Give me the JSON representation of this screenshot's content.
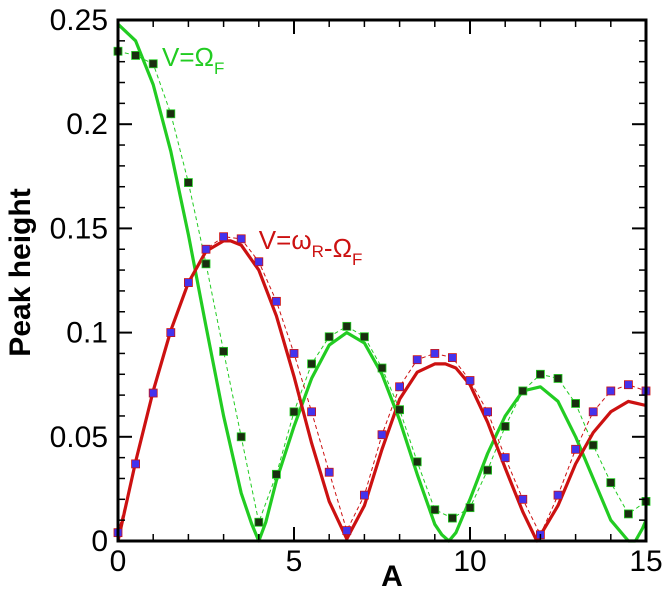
{
  "chart_data": {
    "type": "line",
    "title": "",
    "xlabel": "A",
    "ylabel": "Peak height",
    "xlim": [
      0,
      15
    ],
    "ylim": [
      0,
      0.25
    ],
    "xticks": [
      {
        "value": 0,
        "label": "0"
      },
      {
        "value": 5,
        "label": "5"
      },
      {
        "value": 10,
        "label": "10"
      },
      {
        "value": 15,
        "label": "15"
      }
    ],
    "yticks": [
      {
        "value": 0,
        "label": "0"
      },
      {
        "value": 0.05,
        "label": "0.05"
      },
      {
        "value": 0.1,
        "label": "0.1"
      },
      {
        "value": 0.15,
        "label": "0.15"
      },
      {
        "value": 0.2,
        "label": "0.2"
      },
      {
        "value": 0.25,
        "label": "0.25"
      }
    ],
    "grid": false,
    "colors": {
      "green": "#22cc22",
      "red": "#cc1111",
      "green_marker": "#1a2e10",
      "red_marker": "#4433ee"
    },
    "series": [
      {
        "key": "green_curve",
        "style": "solid-line",
        "color": "#22cc22",
        "x": [
          0,
          0.5,
          1,
          1.5,
          2,
          2.5,
          3,
          3.5,
          3.8,
          4,
          4.2,
          4.5,
          5,
          5.5,
          6,
          6.5,
          7,
          7.5,
          8,
          8.5,
          9,
          9.2,
          9.4,
          9.6,
          10,
          10.5,
          11,
          11.5,
          12,
          12.5,
          13,
          13.5,
          14,
          14.5,
          14.7,
          14.9,
          15
        ],
        "y": [
          0.248,
          0.24,
          0.219,
          0.187,
          0.147,
          0.103,
          0.06,
          0.023,
          0.008,
          0.0,
          0.009,
          0.029,
          0.055,
          0.078,
          0.094,
          0.1,
          0.095,
          0.08,
          0.058,
          0.032,
          0.008,
          0.003,
          0.0,
          0.004,
          0.02,
          0.042,
          0.06,
          0.072,
          0.074,
          0.067,
          0.05,
          0.03,
          0.01,
          0.0,
          0.0,
          0.006,
          0.01
        ]
      },
      {
        "key": "red_curve",
        "style": "solid-line",
        "color": "#cc1111",
        "x": [
          0,
          0.5,
          1,
          1.5,
          2,
          2.5,
          3,
          3.2,
          3.5,
          4,
          4.5,
          5,
          5.5,
          6,
          6.5,
          7,
          7.5,
          8,
          8.5,
          9,
          9.3,
          9.6,
          10,
          10.5,
          11,
          11.5,
          11.9,
          12.5,
          13,
          13.5,
          14,
          14.5,
          15
        ],
        "y": [
          0.0,
          0.038,
          0.072,
          0.101,
          0.124,
          0.139,
          0.144,
          0.144,
          0.142,
          0.13,
          0.108,
          0.079,
          0.047,
          0.019,
          0.001,
          0.017,
          0.044,
          0.068,
          0.081,
          0.085,
          0.085,
          0.083,
          0.075,
          0.057,
          0.035,
          0.014,
          0.0,
          0.017,
          0.037,
          0.052,
          0.062,
          0.067,
          0.065
        ]
      },
      {
        "key": "green_markers",
        "style": "markers-dashed",
        "color": "#22cc22",
        "marker_color": "#1a2e10",
        "x": [
          0,
          0.5,
          1,
          1.5,
          2,
          2.5,
          3,
          3.5,
          4,
          4.5,
          5,
          5.5,
          6,
          6.5,
          7,
          7.5,
          8,
          8.5,
          9,
          9.5,
          10,
          10.5,
          11,
          11.5,
          12,
          12.5,
          13,
          13.5,
          14,
          14.5,
          15
        ],
        "y": [
          0.235,
          0.233,
          0.229,
          0.205,
          0.172,
          0.133,
          0.091,
          0.05,
          0.009,
          0.032,
          0.062,
          0.085,
          0.098,
          0.103,
          0.098,
          0.083,
          0.063,
          0.038,
          0.015,
          0.011,
          0.016,
          0.034,
          0.055,
          0.072,
          0.08,
          0.078,
          0.066,
          0.046,
          0.028,
          0.013,
          0.019
        ]
      },
      {
        "key": "red_markers",
        "style": "markers-dashed",
        "color": "#cc1111",
        "marker_color": "#4433ee",
        "x": [
          0,
          0.5,
          1,
          1.5,
          2,
          2.5,
          3,
          3.5,
          4,
          4.5,
          5,
          5.5,
          6,
          6.5,
          7,
          7.5,
          8,
          8.5,
          9,
          9.5,
          10,
          10.5,
          11,
          11.5,
          12,
          12.5,
          13,
          13.5,
          14,
          14.5,
          15
        ],
        "y": [
          0.004,
          0.037,
          0.071,
          0.1,
          0.124,
          0.14,
          0.146,
          0.145,
          0.134,
          0.115,
          0.09,
          0.062,
          0.033,
          0.005,
          0.022,
          0.051,
          0.074,
          0.087,
          0.09,
          0.088,
          0.077,
          0.062,
          0.04,
          0.02,
          0.003,
          0.022,
          0.044,
          0.062,
          0.072,
          0.075,
          0.072
        ]
      }
    ],
    "annotations": [
      {
        "key": "green_label",
        "base": "V=Ω",
        "sub": "F",
        "color": "#22cc22",
        "x": 1.25,
        "y": 0.228
      },
      {
        "key": "red_label",
        "parts": [
          {
            "text": "V=ω",
            "sub": "R"
          },
          {
            "text": "-Ω",
            "sub": "F"
          }
        ],
        "color": "#cc1111",
        "x": 4.0,
        "y": 0.14
      }
    ]
  }
}
